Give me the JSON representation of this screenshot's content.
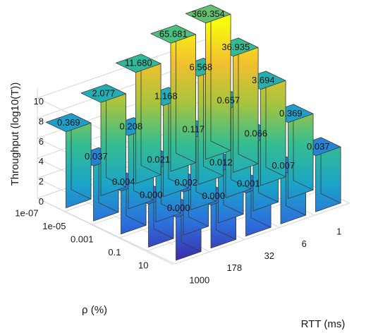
{
  "chart_data": {
    "type": "bar3d",
    "zlabel": "Throughput (log10(T))",
    "xlabel": "RTT (ms)",
    "ylabel": "ρ (%)",
    "x_ticks": [
      "1000",
      "178",
      "32",
      "6",
      "1"
    ],
    "y_ticks": [
      "1e-07",
      "1e-05",
      "0.001",
      "0.1",
      "10"
    ],
    "z_ticks": [
      "0",
      "2",
      "4",
      "6",
      "8",
      "10"
    ],
    "zlim": [
      0,
      11
    ],
    "colormap": [
      "#3e26a8",
      "#2c6fdc",
      "#1ba5c7",
      "#36be8e",
      "#a8c43d",
      "#f3c02f",
      "#f9fb0e"
    ],
    "grid": true,
    "bars": [
      {
        "rtt": "1000",
        "rho": "10",
        "label": "0.000",
        "height": 4.3
      },
      {
        "rtt": "1000",
        "rho": "0.1",
        "label": "0.000",
        "height": 4.3
      },
      {
        "rtt": "1000",
        "rho": "0.001",
        "label": "0.004",
        "height": 4.3
      },
      {
        "rtt": "1000",
        "rho": "1e-05",
        "label": "0.037",
        "height": 5.5
      },
      {
        "rtt": "1000",
        "rho": "1e-07",
        "label": "0.369",
        "height": 7.6
      },
      {
        "rtt": "178",
        "rho": "10",
        "label": "0.000",
        "height": 4.3
      },
      {
        "rtt": "178",
        "rho": "0.1",
        "label": "0.002",
        "height": 4.3
      },
      {
        "rtt": "178",
        "rho": "0.001",
        "label": "0.021",
        "height": 5.3
      },
      {
        "rtt": "178",
        "rho": "1e-05",
        "label": "0.208",
        "height": 7.3
      },
      {
        "rtt": "178",
        "rho": "1e-07",
        "label": "2.077",
        "height": 9.3
      },
      {
        "rtt": "32",
        "rho": "10",
        "label": "0.001",
        "height": 4.3
      },
      {
        "rtt": "32",
        "rho": "0.1",
        "label": "0.012",
        "height": 5.1
      },
      {
        "rtt": "32",
        "rho": "0.001",
        "label": "0.117",
        "height": 7.1
      },
      {
        "rtt": "32",
        "rho": "1e-05",
        "label": "1.168",
        "height": 9.1
      },
      {
        "rtt": "32",
        "rho": "1e-07",
        "label": "11.680",
        "height": 11.1
      },
      {
        "rtt": "6",
        "rho": "10",
        "label": "0.007",
        "height": 4.9
      },
      {
        "rtt": "6",
        "rho": "0.1",
        "label": "0.066",
        "height": 6.8
      },
      {
        "rtt": "6",
        "rho": "0.001",
        "label": "0.657",
        "height": 8.8
      },
      {
        "rtt": "6",
        "rho": "1e-05",
        "label": "6.568",
        "height": 10.8
      },
      {
        "rtt": "6",
        "rho": "1e-07",
        "label": "65.681",
        "height": 12.8
      },
      {
        "rtt": "1",
        "rho": "10",
        "label": "0.037",
        "height": 5.6
      },
      {
        "rtt": "1",
        "rho": "0.1",
        "label": "0.369",
        "height": 7.6
      },
      {
        "rtt": "1",
        "rho": "0.001",
        "label": "3.694",
        "height": 9.6
      },
      {
        "rtt": "1",
        "rho": "1e-05",
        "label": "36.935",
        "height": 11.6
      },
      {
        "rtt": "1",
        "rho": "1e-07",
        "label": "369.354",
        "height": 13.6
      }
    ]
  }
}
